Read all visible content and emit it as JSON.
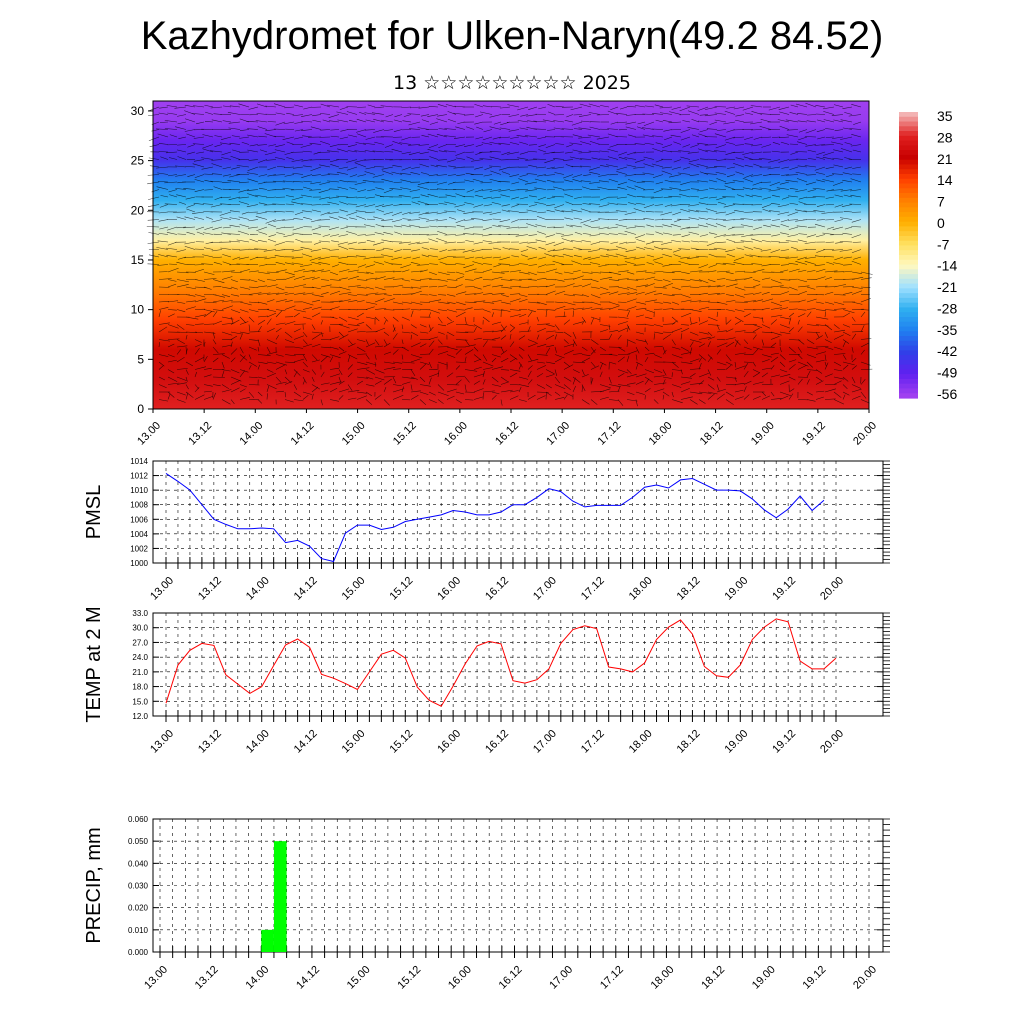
{
  "title": "Kazhydromet for Ulken-Naryn(49.2 84.52)",
  "subtitle": "13 ☆☆☆☆☆☆☆☆☆ 2025",
  "chart_data": [
    {
      "type": "heatmap",
      "description_key": "vertical cross-section with wind vectors",
      "ylim": [
        0,
        31
      ],
      "yticks": [
        0,
        5,
        10,
        15,
        20,
        25,
        30
      ],
      "x_tick_labels": [
        "13.00",
        "13.12",
        "14.00",
        "14.12",
        "15.00",
        "15.12",
        "16.00",
        "16.12",
        "17.00",
        "17.12",
        "18.00",
        "18.12",
        "19.00",
        "19.12",
        "20.00"
      ],
      "colorbar_labels": [
        "35",
        "28",
        "21",
        "14",
        "7",
        "0",
        "-7",
        "-14",
        "-21",
        "-28",
        "-35",
        "-42",
        "-49",
        "-56"
      ],
      "colorbar_colors": [
        "#f3b3b3",
        "#e02020",
        "#c80000",
        "#ff4000",
        "#ff8000",
        "#ffb000",
        "#ffe060",
        "#fff8c0",
        "#a0e0ff",
        "#30b0f0",
        "#2080f0",
        "#3040e8",
        "#6020f0",
        "#a040f0"
      ],
      "temperature_profile": {
        "levels": [
          0,
          3,
          6,
          9,
          12,
          15,
          17,
          19,
          21,
          23,
          25,
          27,
          29,
          31
        ],
        "values": [
          28,
          24,
          20,
          14,
          7,
          0,
          -12,
          -20,
          -28,
          -35,
          -45,
          -50,
          -55,
          -58
        ]
      }
    },
    {
      "type": "line",
      "ylabel": "PMSL",
      "ylim": [
        1000,
        1014
      ],
      "yticks": [
        1000,
        1002,
        1004,
        1006,
        1008,
        1010,
        1012,
        1014
      ],
      "x_tick_labels": [
        "13.00",
        "13.12",
        "14.00",
        "14.12",
        "15.00",
        "15.12",
        "16.00",
        "16.12",
        "17.00",
        "17.12",
        "18.00",
        "18.12",
        "19.00",
        "19.12",
        "20.00"
      ],
      "x_step_hours": 3,
      "color": "#0000ff",
      "values": [
        1012.3,
        1011.2,
        1010.0,
        1008.0,
        1006.0,
        1005.3,
        1004.7,
        1004.7,
        1004.8,
        1004.7,
        1002.8,
        1003.1,
        1002.3,
        1000.6,
        1000.2,
        1004.1,
        1005.2,
        1005.2,
        1004.6,
        1004.9,
        1005.7,
        1006.0,
        1006.3,
        1006.6,
        1007.2,
        1007.0,
        1006.6,
        1006.6,
        1007.0,
        1008.0,
        1008.0,
        1009.0,
        1010.2,
        1009.8,
        1008.5,
        1007.7,
        1007.9,
        1007.9,
        1007.9,
        1009.0,
        1010.4,
        1010.7,
        1010.3,
        1011.4,
        1011.6,
        1010.8,
        1010.0,
        1010.0,
        1009.9,
        1008.8,
        1007.3,
        1006.2,
        1007.4,
        1009.2,
        1007.2,
        1008.6
      ]
    },
    {
      "type": "line",
      "ylabel": "TEMP at 2 M",
      "ylim": [
        12.0,
        33.0
      ],
      "yticks": [
        "12.0",
        "15.0",
        "18.0",
        "21.0",
        "24.0",
        "27.0",
        "30.0",
        "33.0"
      ],
      "x_tick_labels": [
        "13.00",
        "13.12",
        "14.00",
        "14.12",
        "15.00",
        "15.12",
        "16.00",
        "16.12",
        "17.00",
        "17.12",
        "18.00",
        "18.12",
        "19.00",
        "19.12",
        "20.00"
      ],
      "x_step_hours": 3,
      "color": "#ff0000",
      "values": [
        14.6,
        22.4,
        25.4,
        26.8,
        26.4,
        20.4,
        18.5,
        16.6,
        18.0,
        22.3,
        26.5,
        27.7,
        26.0,
        20.5,
        19.7,
        18.6,
        17.4,
        21.0,
        24.6,
        25.4,
        23.8,
        17.9,
        15.2,
        14.0,
        18.1,
        22.6,
        26.3,
        27.2,
        26.7,
        19.2,
        18.7,
        19.4,
        21.6,
        26.8,
        29.6,
        30.4,
        29.8,
        22.0,
        21.6,
        21.0,
        22.8,
        27.6,
        30.1,
        31.6,
        28.7,
        22.1,
        20.2,
        19.9,
        22.4,
        27.6,
        30.1,
        31.8,
        31.2,
        23.2,
        21.6,
        21.6,
        23.8
      ]
    },
    {
      "type": "bar",
      "ylabel": "PRECIP, mm",
      "ylim": [
        0.0,
        0.06
      ],
      "yticks": [
        "0.000",
        "0.010",
        "0.020",
        "0.030",
        "0.040",
        "0.050",
        "0.060"
      ],
      "x_tick_labels": [
        "13.00",
        "13.12",
        "14.00",
        "14.12",
        "15.00",
        "15.12",
        "16.00",
        "16.12",
        "17.00",
        "17.12",
        "18.00",
        "18.12",
        "19.00",
        "19.12",
        "20.00"
      ],
      "x_step_hours": 3,
      "color": "#00ff00",
      "bars": [
        {
          "start_hour": 24,
          "end_hour": 27,
          "value": 0.01
        },
        {
          "start_hour": 27,
          "end_hour": 30,
          "value": 0.05
        }
      ]
    }
  ]
}
